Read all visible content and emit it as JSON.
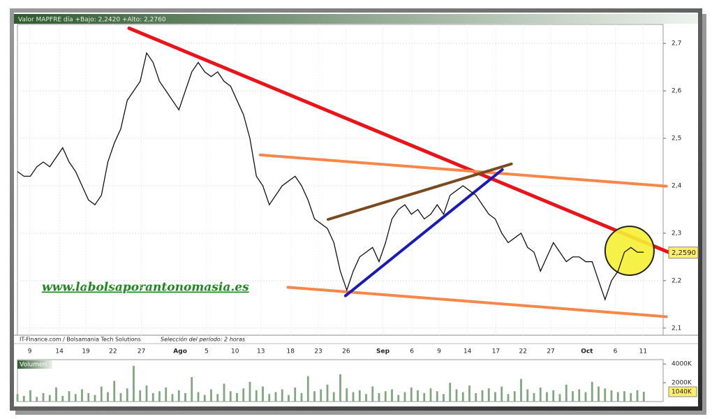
{
  "chart_data": [
    {
      "type": "line",
      "title": "Valor   MAPFRE   día +Bajo: 2,2420 +Alto: 2,2760",
      "source": "IT-Finance.com / Bolsamania Tech Solutions",
      "period_note": "Selección del período: 2 horas",
      "annotation": "www.labolsaporantonomasia.es",
      "xlim": [
        0,
        100
      ],
      "ylim": [
        2.085,
        2.74
      ],
      "xticks": [
        {
          "value": 1.9,
          "label": "9"
        },
        {
          "value": 6.5,
          "label": "14"
        },
        {
          "value": 10.6,
          "label": "19"
        },
        {
          "value": 14.8,
          "label": "22"
        },
        {
          "value": 19.2,
          "label": "27"
        },
        {
          "value": 25.2,
          "label": "Ago"
        },
        {
          "value": 29.3,
          "label": "5"
        },
        {
          "value": 33.7,
          "label": "10"
        },
        {
          "value": 37.7,
          "label": "13"
        },
        {
          "value": 42.3,
          "label": "18"
        },
        {
          "value": 46.6,
          "label": "23"
        },
        {
          "value": 50.9,
          "label": "26"
        },
        {
          "value": 56.6,
          "label": "Sep"
        },
        {
          "value": 61.1,
          "label": "6"
        },
        {
          "value": 65.3,
          "label": "9"
        },
        {
          "value": 69.7,
          "label": "14"
        },
        {
          "value": 74.1,
          "label": "17"
        },
        {
          "value": 78.3,
          "label": "22"
        },
        {
          "value": 82.6,
          "label": "27"
        },
        {
          "value": 88.2,
          "label": "Oct"
        },
        {
          "value": 92.6,
          "label": "6"
        },
        {
          "value": 96.9,
          "label": "11"
        }
      ],
      "yticks": [
        {
          "value": 2.1,
          "label": "2,1"
        },
        {
          "value": 2.2,
          "label": "2,2"
        },
        {
          "value": 2.3,
          "label": "2,3"
        },
        {
          "value": 2.4,
          "label": "2,4"
        },
        {
          "value": 2.5,
          "label": "2,5"
        },
        {
          "value": 2.6,
          "label": "2,6"
        },
        {
          "value": 2.7,
          "label": "2,7"
        }
      ],
      "grid": true,
      "series": [
        {
          "color": "#111111",
          "x": [
            0,
            1,
            2,
            3,
            4,
            5,
            6,
            7,
            8,
            9,
            10,
            11,
            12,
            13,
            14,
            15,
            16,
            17,
            18,
            19,
            20,
            21,
            22,
            23,
            24,
            25,
            26,
            27,
            28,
            29,
            30,
            31,
            32,
            33,
            34,
            35,
            36,
            37,
            38,
            39,
            40,
            41,
            42,
            43,
            44,
            45,
            46,
            47,
            48,
            49,
            50,
            51,
            52,
            53,
            54,
            55,
            56,
            57,
            58,
            59,
            60,
            61,
            62,
            63,
            64,
            65,
            66,
            67,
            68,
            69,
            70,
            71,
            72,
            73,
            74,
            75,
            76,
            77,
            78,
            79,
            80,
            81,
            82,
            83,
            84,
            85,
            86,
            87,
            88,
            89,
            90,
            91,
            92,
            93,
            94,
            95,
            96,
            97
          ],
          "values": [
            2.43,
            2.42,
            2.42,
            2.44,
            2.45,
            2.44,
            2.46,
            2.48,
            2.45,
            2.43,
            2.4,
            2.37,
            2.36,
            2.38,
            2.45,
            2.49,
            2.52,
            2.58,
            2.6,
            2.62,
            2.68,
            2.66,
            2.62,
            2.6,
            2.58,
            2.56,
            2.6,
            2.64,
            2.66,
            2.64,
            2.63,
            2.64,
            2.62,
            2.61,
            2.58,
            2.55,
            2.5,
            2.42,
            2.4,
            2.36,
            2.38,
            2.4,
            2.41,
            2.42,
            2.4,
            2.37,
            2.33,
            2.32,
            2.31,
            2.28,
            2.22,
            2.18,
            2.22,
            2.25,
            2.26,
            2.27,
            2.24,
            2.28,
            2.33,
            2.35,
            2.36,
            2.34,
            2.35,
            2.33,
            2.34,
            2.36,
            2.34,
            2.38,
            2.39,
            2.4,
            2.39,
            2.38,
            2.36,
            2.34,
            2.33,
            2.3,
            2.28,
            2.29,
            2.3,
            2.27,
            2.26,
            2.22,
            2.25,
            2.28,
            2.26,
            2.24,
            2.25,
            2.25,
            2.24,
            2.24,
            2.2,
            2.16,
            2.2,
            2.22,
            2.26,
            2.27,
            2.26,
            2.26
          ]
        }
      ],
      "last_label": {
        "value": 2.259,
        "label": "2,2590"
      },
      "trend_lines": [
        {
          "color": "#e8141a",
          "x": [
            17.3,
            101
          ],
          "y": [
            2.732,
            2.259
          ]
        },
        {
          "color": "#f5874a",
          "x": [
            37.6,
            100.5
          ],
          "y": [
            2.465,
            2.399
          ]
        },
        {
          "color": "#f5874a",
          "x": [
            41.9,
            100.5
          ],
          "y": [
            2.186,
            2.124
          ]
        },
        {
          "color": "#7a4a1e",
          "x": [
            48.1,
            76.5
          ],
          "y": [
            2.329,
            2.446
          ]
        },
        {
          "color": "#1a1ab8",
          "x": [
            50.8,
            75.1
          ],
          "y": [
            2.168,
            2.434
          ]
        }
      ],
      "highlight": {
        "x": 94.8,
        "y": 2.263,
        "color": "#f5f032"
      }
    },
    {
      "type": "bar",
      "title": "Volumen",
      "xlim": [
        0,
        100
      ],
      "ylim": [
        0,
        4460
      ],
      "yticks": [
        {
          "value": 4000,
          "label": "4000K"
        },
        {
          "value": 2000,
          "label": "2000K"
        }
      ],
      "color": "#7fa67f",
      "x": [
        0,
        1,
        2,
        3,
        4,
        5,
        6,
        7,
        8,
        9,
        10,
        11,
        12,
        13,
        14,
        15,
        16,
        17,
        18,
        19,
        20,
        21,
        22,
        23,
        24,
        25,
        26,
        27,
        28,
        29,
        30,
        31,
        32,
        33,
        34,
        35,
        36,
        37,
        38,
        39,
        40,
        41,
        42,
        43,
        44,
        45,
        46,
        47,
        48,
        49,
        50,
        51,
        52,
        53,
        54,
        55,
        56,
        57,
        58,
        59,
        60,
        61,
        62,
        63,
        64,
        65,
        66,
        67,
        68,
        69,
        70,
        71,
        72,
        73,
        74,
        75,
        76,
        77,
        78,
        79,
        80,
        81,
        82,
        83,
        84,
        85,
        86,
        87,
        88,
        89,
        90,
        91,
        92,
        93,
        94,
        95,
        96,
        97
      ],
      "values": [
        800,
        600,
        1200,
        500,
        900,
        700,
        1500,
        600,
        1100,
        800,
        1300,
        900,
        700,
        1600,
        1000,
        2200,
        900,
        1400,
        3800,
        1200,
        1700,
        900,
        1100,
        1500,
        800,
        1200,
        900,
        2600,
        1000,
        700,
        1300,
        800,
        1900,
        1100,
        900,
        1400,
        2100,
        1200,
        1600,
        800,
        1000,
        1300,
        700,
        1500,
        900,
        2700,
        1100,
        1300,
        1800,
        1000,
        2900,
        1400,
        1000,
        1200,
        800,
        1600,
        900,
        1100,
        1300,
        700,
        1000,
        1500,
        1200,
        900,
        1400,
        1100,
        800,
        2000,
        1300,
        1000,
        1700,
        900,
        1200,
        1400,
        1000,
        1600,
        800,
        1100,
        2400,
        1300,
        900,
        1500,
        1000,
        1200,
        800,
        1800,
        1100,
        1300,
        1000,
        2100,
        1600,
        1400,
        1200,
        1000,
        1100,
        900,
        1200,
        1040
      ],
      "last_label": {
        "value": 1040,
        "label": "1040K"
      }
    }
  ]
}
